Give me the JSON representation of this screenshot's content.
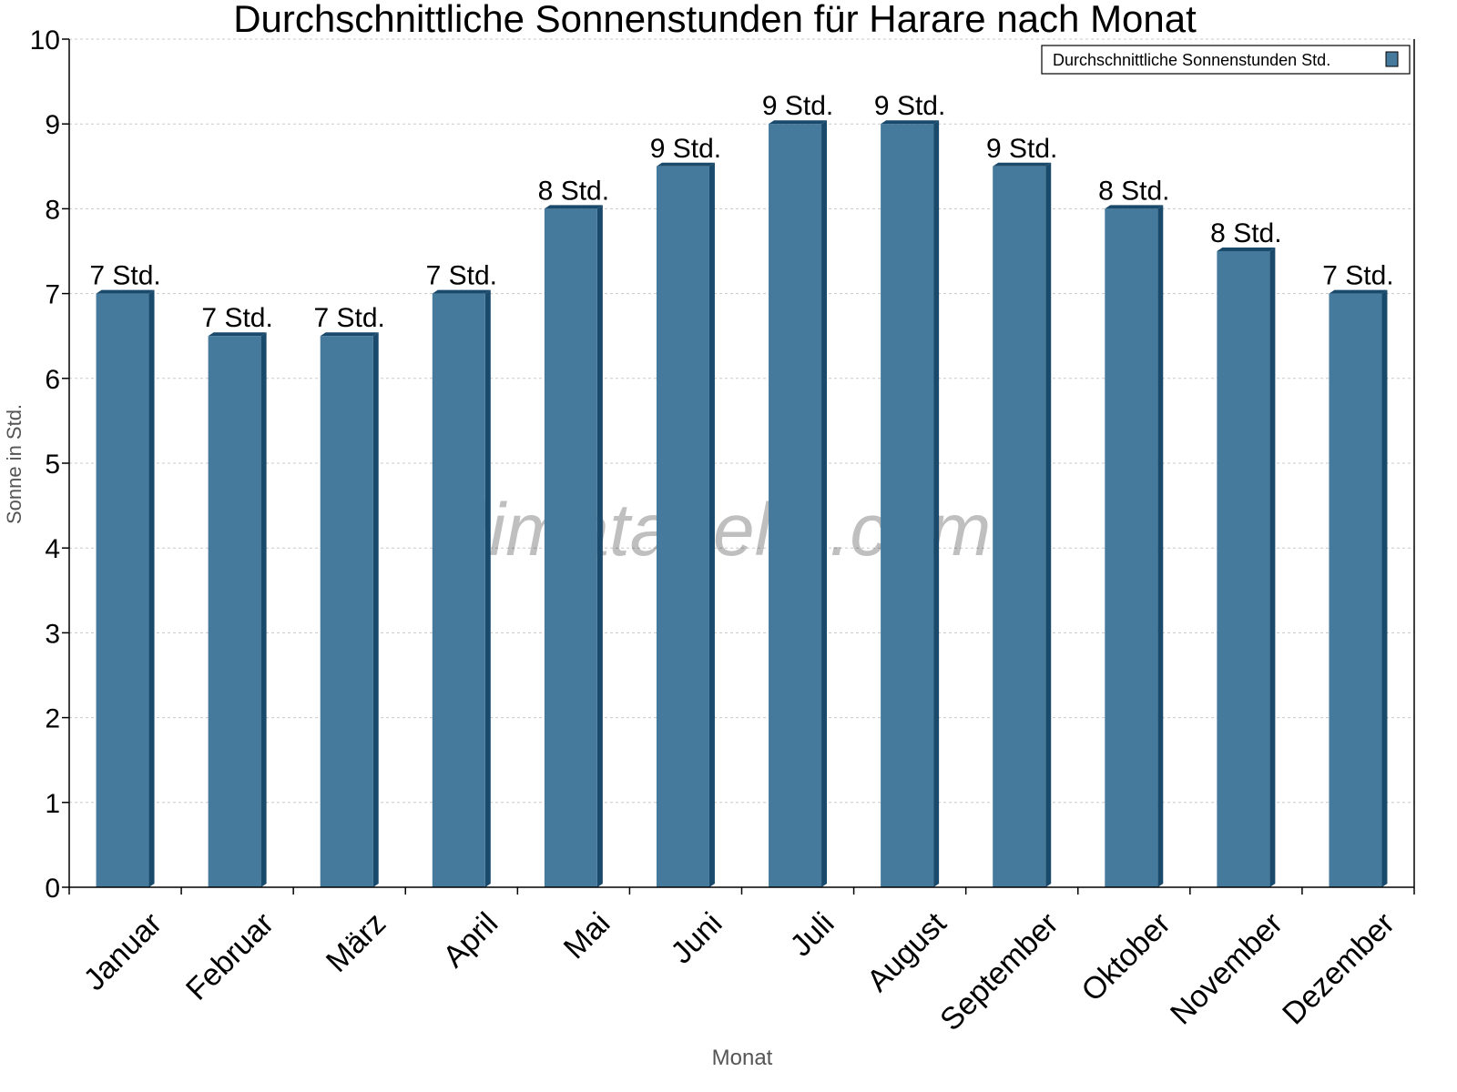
{
  "chart_data": {
    "type": "bar",
    "title": "Durchschnittliche Sonnenstunden für Harare nach Monat",
    "xlabel": "Monat",
    "ylabel": "Sonne in Std.",
    "ylim": [
      0,
      10
    ],
    "yticks": [
      "0",
      "1",
      "2",
      "3",
      "4",
      "5",
      "6",
      "7",
      "8",
      "9",
      "10"
    ],
    "grid": true,
    "legend_position": "top-right",
    "categories": [
      "Januar",
      "Februar",
      "März",
      "April",
      "Mai",
      "Juni",
      "Juli",
      "August",
      "September",
      "Oktober",
      "November",
      "Dezember"
    ],
    "series": [
      {
        "name": "Durchschnittliche Sonnenstunden Std.",
        "color": "#467a9c",
        "side_color": "#1a4a6b",
        "values": [
          7,
          6.5,
          6.5,
          7,
          8,
          8.5,
          9,
          9,
          8.5,
          8,
          7.5,
          7
        ],
        "data_labels": [
          "7 Std.",
          "7 Std.",
          "7 Std.",
          "7 Std.",
          "8 Std.",
          "9 Std.",
          "9 Std.",
          "9 Std.",
          "9 Std.",
          "8 Std.",
          "8 Std.",
          "7 Std."
        ]
      }
    ],
    "watermark": "klimatabelle.com"
  }
}
